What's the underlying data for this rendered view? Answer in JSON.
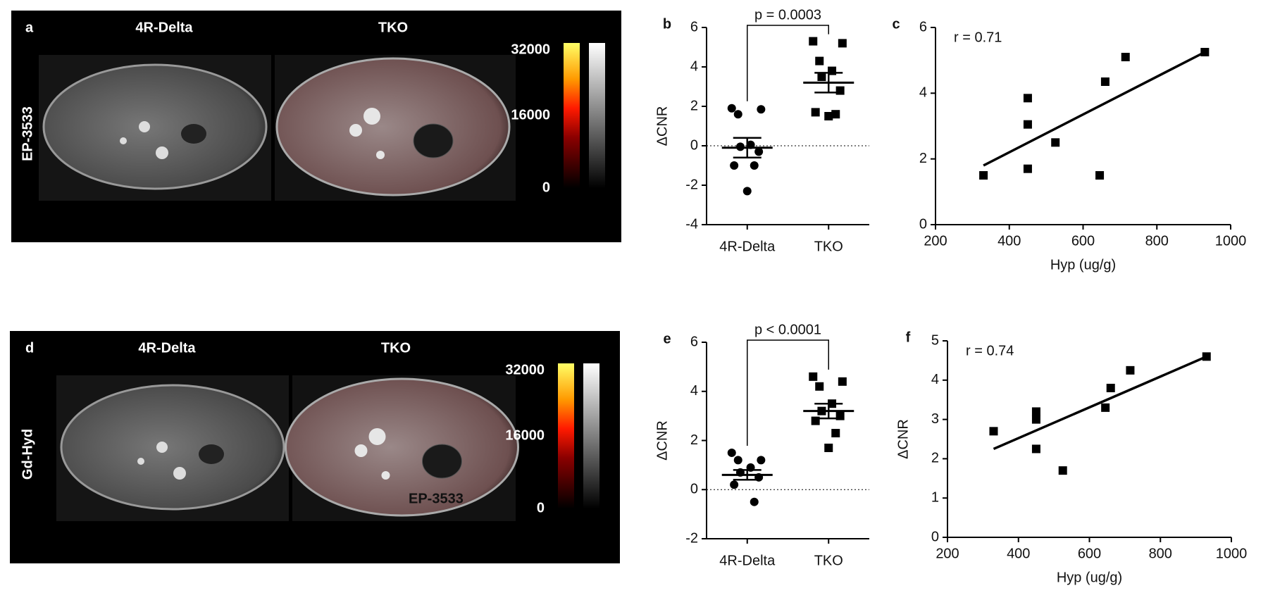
{
  "image_panels": [
    {
      "panel_label": "a",
      "headers": [
        "4R-Delta",
        "TKO"
      ],
      "side_label": "EP-3533",
      "colorbar_ticks": [
        0,
        16000,
        32000
      ],
      "colorbar_range": [
        0,
        32000
      ]
    },
    {
      "panel_label": "d",
      "headers": [
        "4R-Delta",
        "TKO"
      ],
      "side_label": "Gd-Hyd",
      "overlay_text": "EP-3533",
      "colorbar_ticks": [
        0,
        16000,
        32000
      ],
      "colorbar_range": [
        0,
        32000
      ]
    }
  ],
  "chart_data": [
    {
      "type": "dot",
      "panel_label": "b",
      "annotation": "p = 0.0003",
      "y_label": "ΔCNR",
      "categories": [
        "4R-Delta",
        "TKO"
      ],
      "groups": [
        {
          "marker": "circle",
          "values": [
            1.9,
            1.85,
            1.6,
            0.05,
            -0.05,
            -0.3,
            -1.0,
            -1.0,
            -2.3
          ],
          "mean": -0.1,
          "sem": 0.5
        },
        {
          "marker": "square",
          "values": [
            5.3,
            5.2,
            4.3,
            3.8,
            3.5,
            2.8,
            1.7,
            1.6,
            1.5
          ],
          "mean": 3.2,
          "sem": 0.5
        }
      ],
      "ylim": [
        -4,
        6
      ],
      "yticks": [
        -4,
        -2,
        0,
        2,
        4,
        6
      ],
      "zero_line": true,
      "color": "#000000"
    },
    {
      "type": "scatter",
      "panel_label": "c",
      "annotation": "r = 0.71",
      "x_label": "Hyp (ug/g)",
      "x": [
        330,
        450,
        450,
        450,
        525,
        645,
        660,
        715,
        930
      ],
      "y": [
        1.5,
        3.85,
        3.05,
        1.7,
        2.5,
        1.5,
        4.35,
        5.1,
        5.25
      ],
      "fit": {
        "x": [
          330,
          930
        ],
        "y": [
          1.8,
          5.25
        ]
      },
      "xlim": [
        200,
        1000
      ],
      "xticks": [
        200,
        400,
        600,
        800,
        1000
      ],
      "ylim": [
        0,
        6
      ],
      "yticks": [
        0,
        2,
        4,
        6
      ],
      "color": "#000000"
    },
    {
      "type": "dot",
      "panel_label": "e",
      "annotation": "p < 0.0001",
      "y_label": "ΔCNR",
      "categories": [
        "4R-Delta",
        "TKO"
      ],
      "groups": [
        {
          "marker": "circle",
          "values": [
            1.5,
            1.2,
            1.2,
            0.9,
            0.7,
            0.5,
            0.2,
            -0.5
          ],
          "mean": 0.6,
          "sem": 0.2
        },
        {
          "marker": "square",
          "values": [
            4.6,
            4.4,
            4.2,
            3.5,
            3.2,
            3.0,
            2.8,
            2.3,
            1.7
          ],
          "mean": 3.2,
          "sem": 0.3
        }
      ],
      "ylim": [
        -2,
        6
      ],
      "yticks": [
        -2,
        0,
        2,
        4,
        6
      ],
      "zero_line": true,
      "color": "#000000"
    },
    {
      "type": "scatter",
      "panel_label": "f",
      "annotation": "r = 0.74",
      "x_label": "Hyp (ug/g)",
      "y_label": "ΔCNR",
      "x": [
        330,
        450,
        450,
        450,
        525,
        645,
        660,
        715,
        930
      ],
      "y": [
        2.7,
        3.2,
        3.0,
        2.25,
        1.7,
        3.3,
        3.8,
        4.25,
        4.6
      ],
      "fit": {
        "x": [
          330,
          930
        ],
        "y": [
          2.25,
          4.6
        ]
      },
      "xlim": [
        200,
        1000
      ],
      "xticks": [
        200,
        400,
        600,
        800,
        1000
      ],
      "ylim": [
        0,
        5
      ],
      "yticks": [
        0,
        1,
        2,
        3,
        4,
        5
      ],
      "color": "#000000"
    }
  ]
}
